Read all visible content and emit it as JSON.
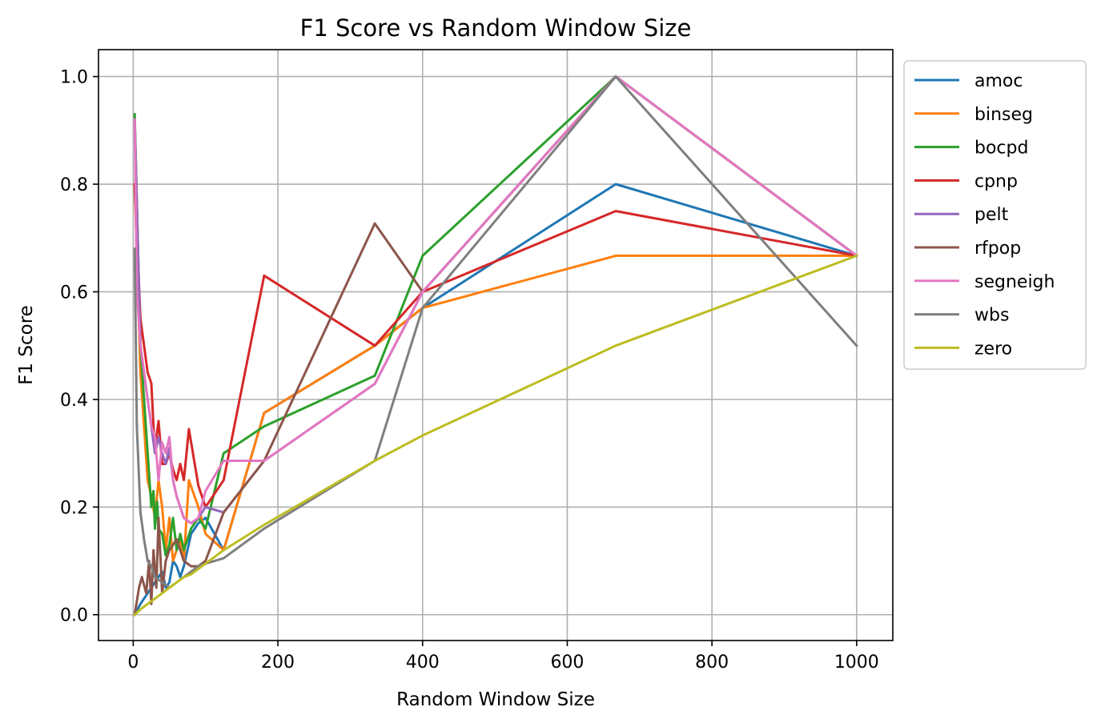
{
  "chart_data": {
    "type": "line",
    "title": "F1 Score vs Random Window Size",
    "xlabel": "Random Window Size",
    "ylabel": "F1 Score",
    "xlim": [
      -48,
      1050
    ],
    "ylim": [
      -0.048,
      1.05
    ],
    "xticks": [
      0,
      200,
      400,
      600,
      800,
      1000
    ],
    "xtick_labels": [
      "0",
      "200",
      "400",
      "600",
      "800",
      "1000"
    ],
    "yticks": [
      0.0,
      0.2,
      0.4,
      0.6,
      0.8,
      1.0
    ],
    "ytick_labels": [
      "0.0",
      "0.2",
      "0.4",
      "0.6",
      "0.8",
      "1.0"
    ],
    "grid": true,
    "legend_position": "outside-top-right",
    "series": [
      {
        "name": "amoc",
        "color": "#1f77b4",
        "x": [
          2,
          10,
          20,
          25,
          30,
          35,
          40,
          45,
          50,
          55,
          60,
          65,
          70,
          80,
          90,
          100,
          125,
          181,
          334,
          400,
          667,
          1000
        ],
        "y": [
          0.0,
          0.02,
          0.04,
          0.05,
          0.06,
          0.07,
          0.08,
          0.05,
          0.06,
          0.1,
          0.09,
          0.07,
          0.09,
          0.15,
          0.17,
          0.18,
          0.12,
          0.375,
          0.5,
          0.57,
          0.8,
          0.667
        ]
      },
      {
        "name": "binseg",
        "color": "#ff7f0e",
        "x": [
          2,
          10,
          20,
          25,
          30,
          35,
          40,
          45,
          50,
          55,
          60,
          65,
          70,
          77,
          90,
          100,
          125,
          181,
          334,
          400,
          667,
          1000
        ],
        "y": [
          0.8,
          0.45,
          0.25,
          0.22,
          0.18,
          0.25,
          0.2,
          0.12,
          0.18,
          0.1,
          0.12,
          0.14,
          0.1,
          0.25,
          0.2,
          0.15,
          0.12,
          0.375,
          0.5,
          0.57,
          0.667,
          0.667
        ]
      },
      {
        "name": "bocpd",
        "color": "#2ca02c",
        "x": [
          2,
          10,
          20,
          25,
          28,
          30,
          33,
          35,
          40,
          45,
          50,
          55,
          60,
          65,
          70,
          80,
          90,
          100,
          125,
          181,
          334,
          400,
          667,
          1000
        ],
        "y": [
          0.93,
          0.5,
          0.3,
          0.2,
          0.23,
          0.16,
          0.21,
          0.16,
          0.15,
          0.11,
          0.13,
          0.18,
          0.12,
          0.15,
          0.12,
          0.16,
          0.18,
          0.16,
          0.3,
          0.35,
          0.444,
          0.667,
          1.0,
          0.667
        ]
      },
      {
        "name": "cpnp",
        "color": "#d62728",
        "x": [
          2,
          10,
          20,
          25,
          28,
          30,
          33,
          35,
          40,
          45,
          50,
          55,
          60,
          65,
          70,
          77,
          90,
          100,
          125,
          181,
          334,
          400,
          667,
          1000
        ],
        "y": [
          0.8,
          0.55,
          0.45,
          0.43,
          0.35,
          0.3,
          0.34,
          0.36,
          0.28,
          0.28,
          0.3,
          0.27,
          0.25,
          0.28,
          0.25,
          0.345,
          0.24,
          0.2,
          0.25,
          0.63,
          0.5,
          0.6,
          0.75,
          0.667
        ]
      },
      {
        "name": "pelt",
        "color": "#9467bd",
        "x": [
          2,
          10,
          20,
          25,
          30,
          35,
          40,
          45,
          50,
          55,
          60,
          65,
          70,
          80,
          90,
          100,
          125,
          181,
          334,
          400,
          667,
          1000
        ],
        "y": [
          0.92,
          0.5,
          0.4,
          0.35,
          0.3,
          0.33,
          0.3,
          0.28,
          0.31,
          0.25,
          0.22,
          0.2,
          0.18,
          0.17,
          0.18,
          0.2,
          0.19,
          0.286,
          0.429,
          0.6,
          1.0,
          0.667
        ]
      },
      {
        "name": "rfpop",
        "color": "#8c564b",
        "x": [
          2,
          8,
          12,
          18,
          22,
          25,
          28,
          32,
          35,
          40,
          45,
          50,
          55,
          60,
          65,
          70,
          80,
          90,
          100,
          125,
          181,
          334,
          400,
          667,
          1000
        ],
        "y": [
          0.0,
          0.05,
          0.07,
          0.04,
          0.1,
          0.02,
          0.12,
          0.05,
          0.18,
          0.04,
          0.1,
          0.12,
          0.13,
          0.14,
          0.12,
          0.1,
          0.09,
          0.09,
          0.1,
          0.19,
          0.286,
          0.727,
          0.6,
          1.0,
          0.667
        ]
      },
      {
        "name": "segneigh",
        "color": "#e377c2",
        "x": [
          2,
          5,
          10,
          15,
          20,
          25,
          30,
          35,
          40,
          45,
          50,
          55,
          60,
          65,
          70,
          80,
          90,
          100,
          125,
          181,
          334,
          400,
          667,
          1000
        ],
        "y": [
          0.92,
          0.6,
          0.5,
          0.45,
          0.4,
          0.35,
          0.33,
          0.25,
          0.32,
          0.3,
          0.33,
          0.25,
          0.22,
          0.2,
          0.18,
          0.17,
          0.18,
          0.23,
          0.286,
          0.286,
          0.429,
          0.6,
          1.0,
          0.667
        ]
      },
      {
        "name": "wbs",
        "color": "#7f7f7f",
        "x": [
          2,
          5,
          10,
          15,
          20,
          25,
          30,
          40,
          50,
          60,
          70,
          80,
          90,
          100,
          125,
          181,
          334,
          400,
          667,
          1000
        ],
        "y": [
          0.68,
          0.35,
          0.19,
          0.14,
          0.1,
          0.09,
          0.07,
          0.06,
          0.05,
          0.06,
          0.07,
          0.08,
          0.09,
          0.095,
          0.105,
          0.16,
          0.286,
          0.57,
          1.0,
          0.5
        ]
      },
      {
        "name": "zero",
        "color": "#bcbd22",
        "x": [
          2,
          10,
          20,
          30,
          40,
          50,
          60,
          70,
          80,
          90,
          100,
          125,
          181,
          334,
          400,
          667,
          1000
        ],
        "y": [
          0.0,
          0.01,
          0.02,
          0.03,
          0.04,
          0.05,
          0.06,
          0.07,
          0.075,
          0.085,
          0.095,
          0.12,
          0.167,
          0.286,
          0.333,
          0.5,
          0.667
        ]
      }
    ]
  }
}
